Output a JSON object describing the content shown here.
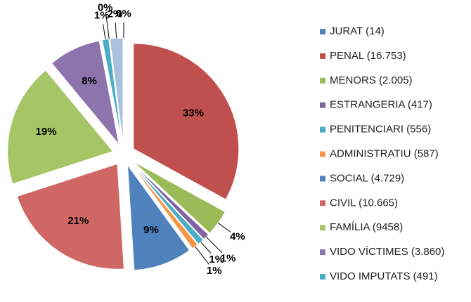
{
  "chart_data": {
    "type": "pie",
    "categories": [
      "JURAT (14)",
      "PENAL (16.753)",
      "MENORS (2.005)",
      "ESTRANGERIA (417)",
      "PENITENCIARI (556)",
      "ADMINISTRATIU (587)",
      "SOCIAL (4.729)",
      "CIVIL (10.665)",
      "FAMÍLIA (9458)",
      "VIDO VÍCTIMES (3.860)",
      "VIDO IMPUTATS (491)",
      null,
      null
    ],
    "values": [
      0,
      33,
      4,
      1,
      1,
      1,
      9,
      21,
      19,
      8,
      1,
      0,
      2
    ],
    "value_labels": [
      "0%",
      "33%",
      "4%",
      "1%",
      "1%",
      "1%",
      "9%",
      "21%",
      "19%",
      "8%",
      "1%",
      "0%",
      "2%"
    ],
    "colors": [
      "#4f81bd",
      "#c0504d",
      "#9bbb59",
      "#8064a2",
      "#4bacc6",
      "#f79646",
      "#4f81bd",
      "#cf6764",
      "#a5c566",
      "#8d74ad",
      "#4bacc6",
      "#f79646",
      "#a9c1df"
    ],
    "legend": "right"
  }
}
